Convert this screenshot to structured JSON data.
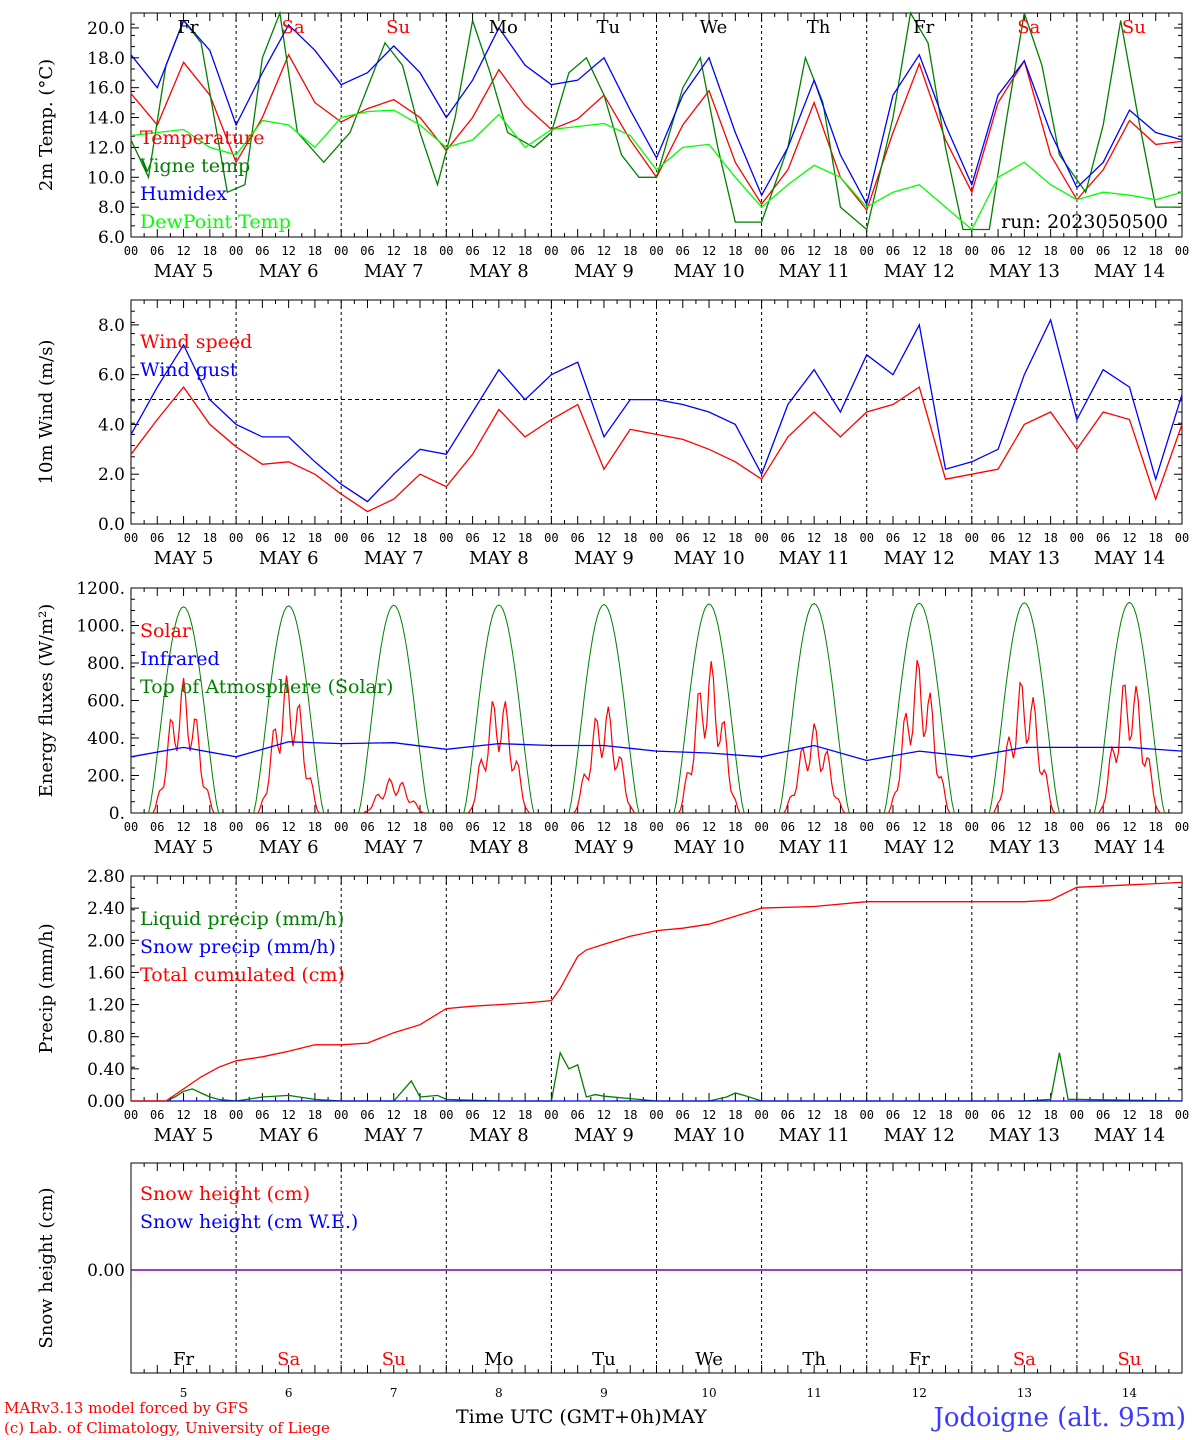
{
  "footer": {
    "credit_line1": "MARv3.13 model forced by GFS",
    "credit_line2": "(c) Lab. of Climatology, University of Liege",
    "station": "Jodoigne (alt. 95m)",
    "xaxis_title": "Time UTC (GMT+0h)MAY"
  },
  "run_label": "run: 2023050500",
  "days": {
    "weekday_labels": [
      "Fr",
      "Sa",
      "Su",
      "Mo",
      "Tu",
      "We",
      "Th",
      "Fr",
      "Sa",
      "Su"
    ],
    "date_labels": [
      "MAY  5",
      "MAY  6",
      "MAY  7",
      "MAY  8",
      "MAY  9",
      "MAY 10",
      "MAY 11",
      "MAY 12",
      "MAY 13",
      "MAY 14"
    ],
    "day_numbers": [
      "5",
      "6",
      "7",
      "8",
      "9",
      "10",
      "11",
      "12",
      "13",
      "14"
    ],
    "hour_ticks": [
      "00",
      "06",
      "12",
      "18"
    ],
    "final_tick": "00"
  },
  "colors": {
    "red": "#ff0000",
    "dark_green": "#008000",
    "blue": "#0000ff",
    "light_green": "#00ff00",
    "purple": "#8000a0",
    "weekend": "#ff0000",
    "weekday": "#000000"
  },
  "chart_data": [
    {
      "type": "line",
      "ylabel": "2m Temp. (°C)",
      "ylim": [
        6.0,
        21.0
      ],
      "yticks": [
        "6.0",
        "8.0",
        "10.0",
        "12.0",
        "14.0",
        "16.0",
        "18.0",
        "20.0"
      ],
      "x_unit": "hours since 2023-05-05 00 UTC",
      "series": [
        {
          "name": "Temperature",
          "color": "#ff0000",
          "x": [
            0,
            6,
            12,
            18,
            24,
            30,
            36,
            42,
            48,
            54,
            60,
            66,
            72,
            78,
            84,
            90,
            96,
            102,
            108,
            114,
            120,
            126,
            132,
            138,
            144,
            150,
            156,
            162,
            168,
            174,
            180,
            186,
            192,
            198,
            204,
            210,
            216,
            222,
            228,
            234,
            240
          ],
          "y": [
            15.6,
            13.5,
            17.7,
            15.5,
            11.0,
            14.0,
            18.2,
            15.0,
            13.7,
            14.6,
            15.2,
            14.0,
            11.8,
            14.0,
            17.2,
            14.8,
            13.2,
            13.9,
            15.5,
            12.5,
            10.0,
            13.5,
            15.8,
            11.0,
            8.2,
            10.5,
            15.0,
            10.0,
            7.8,
            13.0,
            17.6,
            12.5,
            9.0,
            15.0,
            17.8,
            11.5,
            8.5,
            10.5,
            13.8,
            12.2,
            12.4
          ]
        },
        {
          "name": "Vigne temp",
          "color": "#008000",
          "x": [
            0,
            4,
            8,
            12,
            16,
            22,
            26,
            30,
            34,
            38,
            44,
            50,
            54,
            58,
            62,
            66,
            70,
            74,
            78,
            82,
            86,
            92,
            96,
            100,
            104,
            108,
            112,
            116,
            120,
            126,
            130,
            134,
            138,
            144,
            150,
            154,
            158,
            162,
            168,
            174,
            178,
            182,
            186,
            190,
            196,
            200,
            204,
            208,
            212,
            218,
            222,
            226,
            230,
            234,
            240
          ],
          "y": [
            12.5,
            10.0,
            17.5,
            20.5,
            19.0,
            9.0,
            9.5,
            18.0,
            21.0,
            13.0,
            11.0,
            13.0,
            16.0,
            19.0,
            17.5,
            13.0,
            9.5,
            14.0,
            20.5,
            17.0,
            13.0,
            12.0,
            13.0,
            17.0,
            18.0,
            15.5,
            11.5,
            10.0,
            10.0,
            16.0,
            18.0,
            12.0,
            7.0,
            7.0,
            12.0,
            18.0,
            15.0,
            8.0,
            6.5,
            14.0,
            21.0,
            19.0,
            12.0,
            6.5,
            6.5,
            14.0,
            21.0,
            17.5,
            11.5,
            9.0,
            13.5,
            20.5,
            14.0,
            8.0,
            8.0
          ]
        },
        {
          "name": "Humidex",
          "color": "#0000ff",
          "x": [
            0,
            6,
            12,
            18,
            24,
            30,
            36,
            42,
            48,
            54,
            60,
            66,
            72,
            78,
            84,
            90,
            96,
            102,
            108,
            114,
            120,
            126,
            132,
            138,
            144,
            150,
            156,
            162,
            168,
            174,
            180,
            186,
            192,
            198,
            204,
            210,
            216,
            222,
            228,
            234,
            240
          ],
          "y": [
            18.2,
            16.0,
            20.5,
            18.5,
            13.5,
            17.0,
            20.2,
            18.5,
            16.2,
            17.0,
            18.8,
            17.0,
            14.0,
            16.5,
            20.0,
            17.5,
            16.2,
            16.5,
            18.0,
            14.5,
            11.3,
            15.5,
            18.0,
            13.0,
            8.8,
            12.0,
            16.5,
            11.5,
            8.2,
            15.5,
            18.2,
            13.5,
            9.5,
            15.5,
            17.8,
            13.0,
            9.3,
            11.0,
            14.5,
            13.0,
            12.5
          ]
        },
        {
          "name": "DewPoint Temp",
          "color": "#00ff00",
          "x": [
            0,
            6,
            12,
            18,
            24,
            30,
            36,
            42,
            48,
            54,
            60,
            66,
            72,
            78,
            84,
            90,
            96,
            102,
            108,
            114,
            120,
            126,
            132,
            138,
            144,
            150,
            156,
            162,
            168,
            174,
            180,
            186,
            192,
            198,
            204,
            210,
            216,
            222,
            228,
            234,
            240
          ],
          "y": [
            12.8,
            13.0,
            13.2,
            12.0,
            11.5,
            13.8,
            13.5,
            12.0,
            14.0,
            14.4,
            14.5,
            13.5,
            12.0,
            12.5,
            14.2,
            12.0,
            13.2,
            13.4,
            13.6,
            12.8,
            10.5,
            12.0,
            12.2,
            10.0,
            8.0,
            9.5,
            10.8,
            10.0,
            8.0,
            9.0,
            9.5,
            8.0,
            6.5,
            10.0,
            11.0,
            9.5,
            8.5,
            9.0,
            8.8,
            8.5,
            9.0
          ]
        }
      ],
      "legend_position": "left"
    },
    {
      "type": "line",
      "ylabel": "10m Wind (m/s)",
      "ylim": [
        0.0,
        9.0
      ],
      "yticks": [
        "0.0",
        "2.0",
        "4.0",
        "6.0",
        "8.0"
      ],
      "reference_line": 5.0,
      "series": [
        {
          "name": "Wind speed",
          "color": "#ff0000",
          "x": [
            0,
            6,
            12,
            18,
            24,
            30,
            36,
            42,
            48,
            54,
            60,
            66,
            72,
            78,
            84,
            90,
            96,
            102,
            108,
            114,
            120,
            126,
            132,
            138,
            144,
            150,
            156,
            162,
            168,
            174,
            180,
            186,
            192,
            198,
            204,
            210,
            216,
            222,
            228,
            234,
            240
          ],
          "y": [
            2.8,
            4.2,
            5.5,
            4.0,
            3.1,
            2.4,
            2.5,
            2.0,
            1.2,
            0.5,
            1.0,
            2.0,
            1.5,
            2.8,
            4.6,
            3.5,
            4.2,
            4.8,
            2.2,
            3.8,
            3.6,
            3.4,
            3.0,
            2.5,
            1.8,
            3.5,
            4.5,
            3.5,
            4.5,
            4.8,
            5.5,
            1.8,
            2.0,
            2.2,
            4.0,
            4.5,
            3.0,
            4.5,
            4.2,
            1.0,
            4.0
          ]
        },
        {
          "name": "Wind gust",
          "color": "#0000ff",
          "x": [
            0,
            6,
            12,
            18,
            24,
            30,
            36,
            42,
            48,
            54,
            60,
            66,
            72,
            78,
            84,
            90,
            96,
            102,
            108,
            114,
            120,
            126,
            132,
            138,
            144,
            150,
            156,
            162,
            168,
            174,
            180,
            186,
            192,
            198,
            204,
            210,
            216,
            222,
            228,
            234,
            240
          ],
          "y": [
            3.6,
            5.5,
            7.2,
            5.0,
            4.0,
            3.5,
            3.5,
            2.5,
            1.6,
            0.9,
            2.0,
            3.0,
            2.8,
            4.5,
            6.2,
            5.0,
            6.0,
            6.5,
            3.5,
            5.0,
            5.0,
            4.8,
            4.5,
            4.0,
            2.0,
            4.8,
            6.2,
            4.5,
            6.8,
            6.0,
            8.0,
            2.2,
            2.5,
            3.0,
            6.0,
            8.2,
            4.2,
            6.2,
            5.5,
            1.8,
            5.2
          ]
        }
      ],
      "legend_position": "left"
    },
    {
      "type": "line",
      "ylabel": "Energy fluxes (W/m²)",
      "ylim": [
        0,
        1200
      ],
      "yticks": [
        "0.",
        "200.",
        "400.",
        "600.",
        "800.",
        "1000.",
        "1200."
      ],
      "series": [
        {
          "name": "Solar",
          "peaks": [
            720,
            740,
            190,
            650,
            590,
            820,
            480,
            830,
            730,
            750
          ]
        },
        {
          "name": "Infrared",
          "color": "#0000ff",
          "x": [
            0,
            12,
            24,
            36,
            48,
            60,
            72,
            84,
            96,
            108,
            120,
            132,
            144,
            156,
            168,
            180,
            192,
            204,
            216,
            228,
            240
          ],
          "y": [
            300,
            350,
            300,
            380,
            370,
            375,
            340,
            370,
            360,
            360,
            330,
            320,
            300,
            360,
            280,
            330,
            300,
            350,
            350,
            350,
            330
          ]
        },
        {
          "name": "Top of Atmosphere (Solar)",
          "peaks": [
            1100,
            1105,
            1108,
            1110,
            1112,
            1115,
            1117,
            1119,
            1121,
            1123
          ]
        }
      ],
      "legend_position": "left"
    },
    {
      "type": "line",
      "ylabel": "Precip (mm/h)",
      "ylim": [
        0.0,
        2.8
      ],
      "yticks": [
        "0.00",
        "0.40",
        "0.80",
        "1.20",
        "1.60",
        "2.00",
        "2.40",
        "2.80"
      ],
      "series": [
        {
          "name": "Liquid precip (mm/h)",
          "color": "#008000",
          "x": [
            0,
            8,
            10,
            12,
            14,
            16,
            18,
            20,
            24,
            30,
            36,
            42,
            48,
            60,
            64,
            66,
            70,
            72,
            84,
            96,
            98,
            100,
            102,
            104,
            106,
            108,
            120,
            132,
            136,
            138,
            140,
            144,
            168,
            180,
            204,
            210,
            212,
            214,
            216,
            240
          ],
          "y": [
            0,
            0,
            0.05,
            0.12,
            0.15,
            0.1,
            0.05,
            0.02,
            0,
            0.05,
            0.07,
            0.02,
            0,
            0,
            0.25,
            0.05,
            0.07,
            0.02,
            0,
            0,
            0.6,
            0.4,
            0.45,
            0.05,
            0.08,
            0.06,
            0,
            0,
            0.05,
            0.1,
            0.07,
            0,
            0,
            0,
            0,
            0.02,
            0.6,
            0.02,
            0.02,
            0
          ]
        },
        {
          "name": "Snow precip (mm/h)",
          "color": "#0000ff",
          "x": [
            0,
            240
          ],
          "y": [
            0,
            0
          ]
        },
        {
          "name": "Total cumulated (cm)",
          "color": "#ff0000",
          "x": [
            0,
            8,
            12,
            16,
            20,
            24,
            30,
            36,
            42,
            48,
            54,
            60,
            66,
            72,
            78,
            84,
            90,
            96,
            98,
            100,
            102,
            104,
            108,
            114,
            120,
            126,
            132,
            138,
            144,
            156,
            168,
            180,
            192,
            204,
            210,
            216,
            240
          ],
          "y": [
            0,
            0,
            0.15,
            0.3,
            0.42,
            0.5,
            0.55,
            0.62,
            0.7,
            0.7,
            0.72,
            0.85,
            0.95,
            1.15,
            1.18,
            1.2,
            1.22,
            1.25,
            1.4,
            1.6,
            1.8,
            1.88,
            1.95,
            2.05,
            2.12,
            2.15,
            2.2,
            2.3,
            2.4,
            2.42,
            2.48,
            2.48,
            2.48,
            2.48,
            2.5,
            2.66,
            2.72
          ]
        }
      ],
      "legend_position": "left"
    },
    {
      "type": "line",
      "ylabel": "Snow height (cm)",
      "yticks": [
        "0.00"
      ],
      "series": [
        {
          "name": "Snow height (cm)",
          "color": "#ff0000",
          "x": [
            0,
            240
          ],
          "y": [
            0,
            0
          ]
        },
        {
          "name": "Snow height (cm W.E.)",
          "color": "#0000ff",
          "x": [
            0,
            240
          ],
          "y": [
            0,
            0
          ]
        }
      ],
      "legend_position": "left"
    }
  ]
}
